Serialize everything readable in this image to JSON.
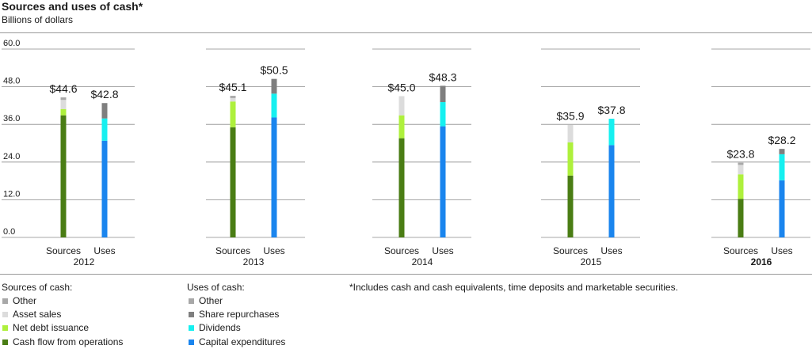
{
  "chart_data": {
    "type": "bar",
    "stacked": true,
    "title": "Sources and uses of cash*",
    "subtitle": "Billions of dollars",
    "ylim": [
      0,
      60
    ],
    "yticks": [
      "60.0",
      "48.0",
      "36.0",
      "24.0",
      "12.0",
      "0.0"
    ],
    "ytick_values": [
      60,
      48,
      36,
      24,
      12,
      0
    ],
    "years": [
      {
        "year": "2012",
        "bold": false,
        "sources": {
          "label": "Sources",
          "total_label": "$44.6",
          "segments": [
            38.9,
            2.0,
            2.9,
            0.8
          ]
        },
        "uses": {
          "label": "Uses",
          "total_label": "$42.8",
          "segments": [
            30.8,
            7.1,
            4.9,
            0.0
          ]
        }
      },
      {
        "year": "2013",
        "bold": false,
        "sources": {
          "label": "Sources",
          "total_label": "$45.1",
          "segments": [
            35.1,
            8.2,
            1.1,
            0.7
          ]
        },
        "uses": {
          "label": "Uses",
          "total_label": "$50.5",
          "segments": [
            38.2,
            7.6,
            4.7,
            0.0
          ]
        }
      },
      {
        "year": "2014",
        "bold": false,
        "sources": {
          "label": "Sources",
          "total_label": "$45.0",
          "segments": [
            31.6,
            7.3,
            6.1,
            0.0
          ]
        },
        "uses": {
          "label": "Uses",
          "total_label": "$48.3",
          "segments": [
            35.4,
            7.7,
            5.2,
            0.0
          ]
        }
      },
      {
        "year": "2015",
        "bold": false,
        "sources": {
          "label": "Sources",
          "total_label": "$35.9",
          "segments": [
            19.7,
            10.6,
            5.6,
            0.0
          ]
        },
        "uses": {
          "label": "Uses",
          "total_label": "$37.8",
          "segments": [
            29.4,
            8.4,
            0.0,
            0.0
          ]
        }
      },
      {
        "year": "2016",
        "bold": true,
        "sources": {
          "label": "Sources",
          "total_label": "$23.8",
          "segments": [
            12.3,
            7.8,
            3.0,
            0.7
          ]
        },
        "uses": {
          "label": "Uses",
          "total_label": "$28.2",
          "segments": [
            18.2,
            8.3,
            1.7,
            0.0
          ]
        }
      }
    ],
    "source_colors": [
      "#4a7d14",
      "#aef03c",
      "#dcdcdc",
      "#a8a8a8"
    ],
    "use_colors": [
      "#1a85ee",
      "#16f0f0",
      "#7f7f7f",
      "#a8a8a8"
    ]
  },
  "legend": {
    "sources_heading": "Sources of cash:",
    "sources_items": [
      {
        "label": "Other",
        "color": "#a8a8a8"
      },
      {
        "label": "Asset sales",
        "color": "#dcdcdc"
      },
      {
        "label": "Net debt issuance",
        "color": "#aef03c"
      },
      {
        "label": "Cash flow from operations",
        "color": "#4a7d14"
      }
    ],
    "uses_heading": "Uses of cash:",
    "uses_items": [
      {
        "label": "Other",
        "color": "#a8a8a8"
      },
      {
        "label": "Share repurchases",
        "color": "#7f7f7f"
      },
      {
        "label": "Dividends",
        "color": "#16f0f0"
      },
      {
        "label": "Capital expenditures",
        "color": "#1a85ee"
      }
    ]
  },
  "footnote": "*Includes cash and cash equivalents, time deposits and marketable securities."
}
